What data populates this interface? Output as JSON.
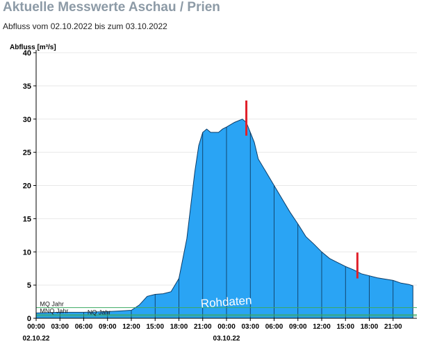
{
  "page": {
    "title": "Aktuelle Messwerte Aschau / Prien",
    "subtitle": "Abfluss vom 02.10.2022 bis zum 03.10.2022"
  },
  "colors": {
    "area": "#2aa4f4",
    "area_stroke": "#0b3b66",
    "hour_lines": "#0d3050",
    "threshold": "#3aa860",
    "marker": "#e0202a",
    "grid": "#e8e8e8",
    "axis": "#000000",
    "watermark": "#ffffff"
  },
  "chart_data": {
    "type": "area",
    "ylabel": "Abfluss [m³/s]",
    "ylim": [
      0,
      40
    ],
    "yticks": [
      0,
      5,
      10,
      15,
      20,
      25,
      30,
      35,
      40
    ],
    "xlim": [
      0,
      48
    ],
    "xticks": [
      {
        "x": 0,
        "label": "00:00"
      },
      {
        "x": 3,
        "label": "03:00"
      },
      {
        "x": 6,
        "label": "06:00"
      },
      {
        "x": 9,
        "label": "09:00"
      },
      {
        "x": 12,
        "label": "12:00"
      },
      {
        "x": 15,
        "label": "15:00"
      },
      {
        "x": 18,
        "label": "18:00"
      },
      {
        "x": 21,
        "label": "21:00"
      },
      {
        "x": 24,
        "label": "00:00"
      },
      {
        "x": 27,
        "label": "03:00"
      },
      {
        "x": 30,
        "label": "06:00"
      },
      {
        "x": 33,
        "label": "09:00"
      },
      {
        "x": 36,
        "label": "12:00"
      },
      {
        "x": 39,
        "label": "15:00"
      },
      {
        "x": 42,
        "label": "18:00"
      },
      {
        "x": 45,
        "label": "21:00"
      }
    ],
    "date_labels": [
      {
        "x": 0,
        "label": "02.10.22"
      },
      {
        "x": 24,
        "label": "03.10.22"
      }
    ],
    "series": [
      {
        "name": "Abfluss",
        "x": [
          0,
          3,
          6,
          9,
          10.5,
          12,
          13,
          14,
          15,
          16,
          17,
          18,
          19,
          19.5,
          20,
          20.5,
          21,
          21.5,
          22,
          22.5,
          23,
          23.5,
          24,
          25,
          26,
          26.5,
          27,
          27.5,
          28,
          29,
          30,
          31,
          32,
          33,
          34,
          35,
          36,
          37,
          38,
          39,
          40,
          41,
          42,
          43,
          44,
          45,
          46,
          47,
          47.5
        ],
        "values": [
          0.8,
          0.9,
          0.9,
          1.0,
          1.1,
          1.2,
          2.0,
          3.3,
          3.6,
          3.7,
          4.0,
          6.0,
          12.0,
          17.0,
          22.0,
          26.0,
          28.0,
          28.5,
          28.0,
          28.0,
          28.0,
          28.5,
          28.8,
          29.5,
          30.0,
          29.5,
          28.0,
          26.5,
          24.0,
          22.0,
          20.0,
          18.0,
          16.0,
          14.2,
          12.3,
          11.2,
          10.0,
          9.0,
          8.4,
          7.8,
          7.3,
          6.7,
          6.4,
          6.1,
          5.9,
          5.7,
          5.3,
          5.1,
          4.9
        ]
      }
    ],
    "thresholds": [
      {
        "name": "MQ Jahr",
        "value": 1.6,
        "label_x": 0.3
      },
      {
        "name": "MNQ Jahr",
        "value": 0.55,
        "label_x": 0.3
      },
      {
        "name": "NQ Jahr",
        "value": 0.35,
        "label_x": 6.3
      }
    ],
    "markers": [
      {
        "x": 26.5,
        "ymin": 27.5,
        "ymax": 32.8
      },
      {
        "x": 40.5,
        "ymin": 6.0,
        "ymax": 9.9
      }
    ],
    "watermark": "Rohdaten"
  }
}
